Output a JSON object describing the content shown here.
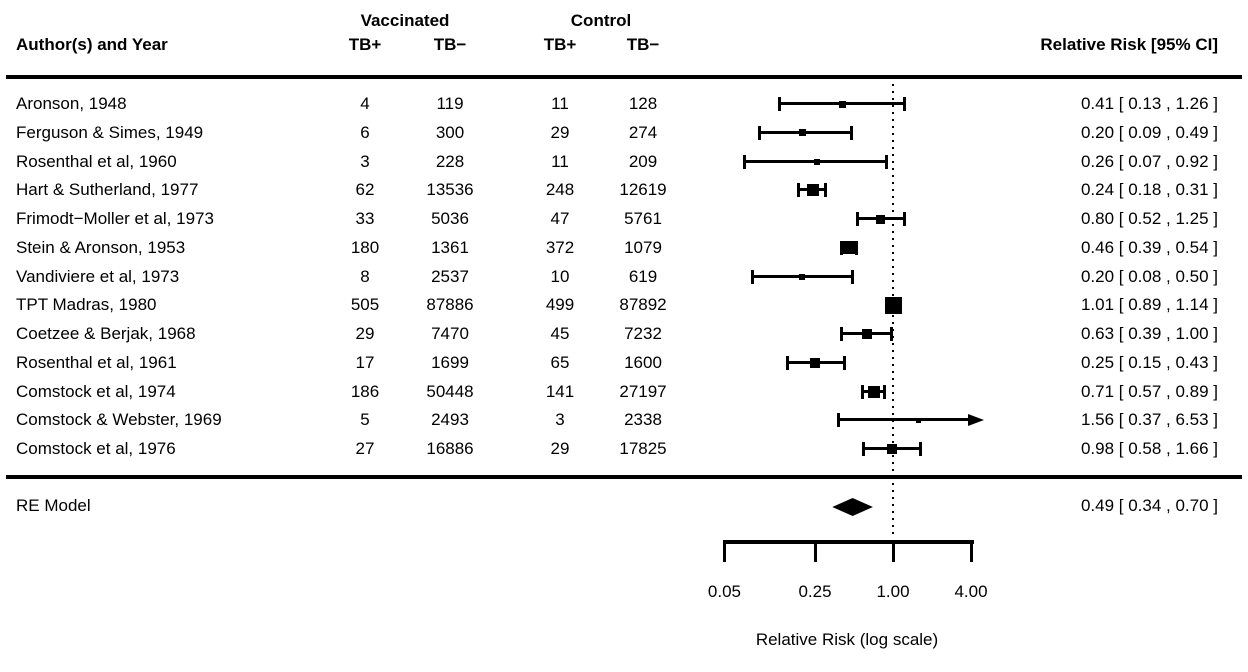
{
  "header": {
    "author_col": "Author(s) and Year",
    "group1": "Vaccinated",
    "group2": "Control",
    "sub_cols": [
      "TB+",
      "TB−",
      "TB+",
      "TB−"
    ],
    "rr_col": "Relative Risk [95% CI]"
  },
  "summary": {
    "label": "RE Model",
    "rr_text": "0.49 [ 0.34 , 0.70 ]",
    "est": 0.49,
    "lo": 0.34,
    "hi": 0.7
  },
  "axis": {
    "label": "Relative Risk (log scale)",
    "ref_line": 1,
    "ticks": [
      {
        "value": 0.05,
        "label": "0.05"
      },
      {
        "value": 0.25,
        "label": "0.25"
      },
      {
        "value": 1,
        "label": "1.00"
      },
      {
        "value": 4,
        "label": "4.00"
      }
    ]
  },
  "chart_data": {
    "type": "forest",
    "x_scale": "log",
    "x_range": [
      0.05,
      4.0
    ],
    "columns": [
      "Vaccinated TB+",
      "Vaccinated TB−",
      "Control TB+",
      "Control TB−"
    ],
    "studies": [
      {
        "author": "Aronson, 1948",
        "vac_tb_pos": 4,
        "vac_tb_neg": 119,
        "ctl_tb_pos": 11,
        "ctl_tb_neg": 128,
        "est": 0.41,
        "lo": 0.13,
        "hi": 1.26,
        "rr_text": "0.41 [ 0.13 , 1.26 ]",
        "size": 7,
        "arrow": false
      },
      {
        "author": "Ferguson & Simes, 1949",
        "vac_tb_pos": 6,
        "vac_tb_neg": 300,
        "ctl_tb_pos": 29,
        "ctl_tb_neg": 274,
        "est": 0.2,
        "lo": 0.09,
        "hi": 0.49,
        "rr_text": "0.20 [ 0.09 , 0.49 ]",
        "size": 7,
        "arrow": false
      },
      {
        "author": "Rosenthal et al, 1960",
        "vac_tb_pos": 3,
        "vac_tb_neg": 228,
        "ctl_tb_pos": 11,
        "ctl_tb_neg": 209,
        "est": 0.26,
        "lo": 0.07,
        "hi": 0.92,
        "rr_text": "0.26 [ 0.07 , 0.92 ]",
        "size": 6,
        "arrow": false
      },
      {
        "author": "Hart & Sutherland, 1977",
        "vac_tb_pos": 62,
        "vac_tb_neg": 13536,
        "ctl_tb_pos": 248,
        "ctl_tb_neg": 12619,
        "est": 0.24,
        "lo": 0.18,
        "hi": 0.31,
        "rr_text": "0.24 [ 0.18 , 0.31 ]",
        "size": 12,
        "arrow": false
      },
      {
        "author": "Frimodt−Moller et al, 1973",
        "vac_tb_pos": 33,
        "vac_tb_neg": 5036,
        "ctl_tb_pos": 47,
        "ctl_tb_neg": 5761,
        "est": 0.8,
        "lo": 0.52,
        "hi": 1.25,
        "rr_text": "0.80 [ 0.52 , 1.25 ]",
        "size": 9,
        "arrow": false
      },
      {
        "author": "Stein & Aronson, 1953",
        "vac_tb_pos": 180,
        "vac_tb_neg": 1361,
        "ctl_tb_pos": 372,
        "ctl_tb_neg": 1079,
        "est": 0.46,
        "lo": 0.39,
        "hi": 0.54,
        "rr_text": "0.46 [ 0.39 , 0.54 ]",
        "size": 13,
        "arrow": false
      },
      {
        "author": "Vandiviere et al, 1973",
        "vac_tb_pos": 8,
        "vac_tb_neg": 2537,
        "ctl_tb_pos": 10,
        "ctl_tb_neg": 619,
        "est": 0.2,
        "lo": 0.08,
        "hi": 0.5,
        "rr_text": "0.20 [ 0.08 , 0.50 ]",
        "size": 6,
        "arrow": false
      },
      {
        "author": "TPT Madras, 1980",
        "vac_tb_pos": 505,
        "vac_tb_neg": 87886,
        "ctl_tb_pos": 499,
        "ctl_tb_neg": 87892,
        "est": 1.01,
        "lo": 0.89,
        "hi": 1.14,
        "rr_text": "1.01 [ 0.89 , 1.14 ]",
        "size": 17,
        "arrow": false
      },
      {
        "author": "Coetzee & Berjak, 1968",
        "vac_tb_pos": 29,
        "vac_tb_neg": 7470,
        "ctl_tb_pos": 45,
        "ctl_tb_neg": 7232,
        "est": 0.63,
        "lo": 0.39,
        "hi": 1.0,
        "rr_text": "0.63 [ 0.39 , 1.00 ]",
        "size": 10,
        "arrow": false
      },
      {
        "author": "Rosenthal et al, 1961",
        "vac_tb_pos": 17,
        "vac_tb_neg": 1699,
        "ctl_tb_pos": 65,
        "ctl_tb_neg": 1600,
        "est": 0.25,
        "lo": 0.15,
        "hi": 0.43,
        "rr_text": "0.25 [ 0.15 , 0.43 ]",
        "size": 10,
        "arrow": false
      },
      {
        "author": "Comstock et al, 1974",
        "vac_tb_pos": 186,
        "vac_tb_neg": 50448,
        "ctl_tb_pos": 141,
        "ctl_tb_neg": 27197,
        "est": 0.71,
        "lo": 0.57,
        "hi": 0.89,
        "rr_text": "0.71 [ 0.57 , 0.89 ]",
        "size": 12,
        "arrow": false
      },
      {
        "author": "Comstock & Webster, 1969",
        "vac_tb_pos": 5,
        "vac_tb_neg": 2493,
        "ctl_tb_pos": 3,
        "ctl_tb_neg": 2338,
        "est": 1.56,
        "lo": 0.37,
        "hi": 6.53,
        "rr_text": "1.56 [ 0.37 , 6.53 ]",
        "size": 5,
        "arrow": true
      },
      {
        "author": "Comstock et al, 1976",
        "vac_tb_pos": 27,
        "vac_tb_neg": 16886,
        "ctl_tb_pos": 29,
        "ctl_tb_neg": 17825,
        "est": 0.98,
        "lo": 0.58,
        "hi": 1.66,
        "rr_text": "0.98 [ 0.58 , 1.66 ]",
        "size": 10,
        "arrow": false
      }
    ]
  }
}
